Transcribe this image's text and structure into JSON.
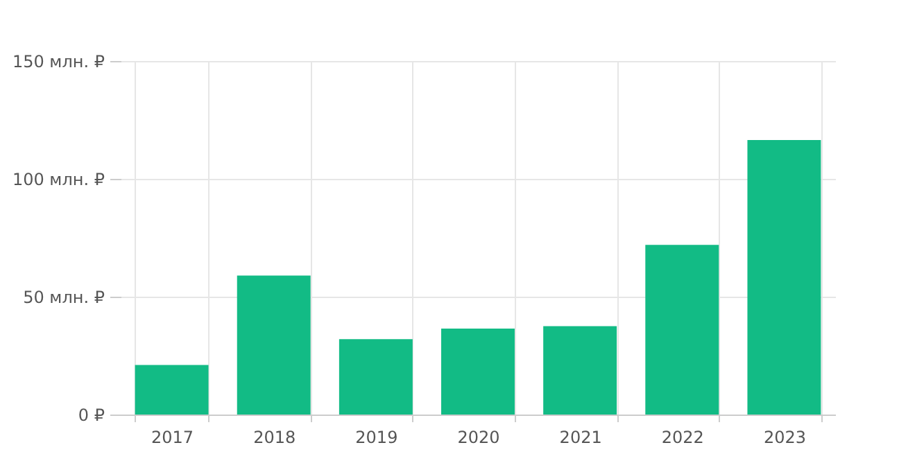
{
  "chart_data": {
    "type": "bar",
    "categories": [
      "2017",
      "2018",
      "2019",
      "2020",
      "2021",
      "2022",
      "2023"
    ],
    "values": [
      21,
      59,
      32,
      36.5,
      37.5,
      72,
      116.5
    ],
    "color": "#12bb85",
    "ylim": [
      0,
      150
    ],
    "yticks": [
      {
        "value": 0,
        "label": "0 ₽"
      },
      {
        "value": 50,
        "label": "50 млн. ₽"
      },
      {
        "value": 100,
        "label": "100 млн. ₽"
      },
      {
        "value": 150,
        "label": "150 млн. ₽"
      }
    ],
    "grid": true
  }
}
